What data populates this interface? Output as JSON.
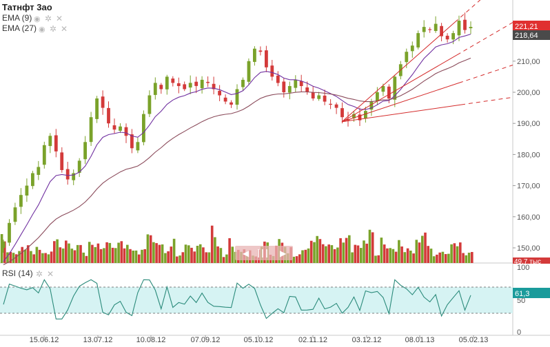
{
  "instrument": {
    "name": "Татнфт 3ао",
    "indicators": [
      {
        "label": "EMA (9)",
        "color": "#7030a0"
      },
      {
        "label": "EMA (27)",
        "color": "#8a4a5a"
      }
    ],
    "price_badges": [
      {
        "value": "221,21",
        "color": "#e03030"
      },
      {
        "value": "218,64",
        "color": "#4a4a4a"
      }
    ],
    "volume_badge": "49,7 тыс"
  },
  "rsi": {
    "label": "RSI (14)",
    "badge": "61,3",
    "badge_color": "#1a9b9b",
    "levels": [
      30,
      70
    ],
    "ticks": [
      "100",
      "50",
      "0"
    ]
  },
  "colors": {
    "up": "#7aa22a",
    "down": "#d33a3a",
    "ema_fast": "#7030a0",
    "ema_slow": "#8a4a5a",
    "fan": "#d42a2a",
    "rsi_line": "#2a8a7a",
    "rsi_band": "#d6f3f3"
  },
  "chart_data": [
    {
      "type": "candlestick",
      "title": "Татнфт 3ао",
      "x_tick_labels": [
        "15.06.12",
        "13.07.12",
        "10.08.12",
        "07.09.12",
        "05.10.12",
        "02.11.12",
        "03.12.12",
        "08.01.13",
        "05.02.13"
      ],
      "y_tick_labels": [
        "150,00",
        "160,00",
        "170,00",
        "180,00",
        "190,00",
        "200,00",
        "210,00"
      ],
      "ylim": [
        145,
        228
      ],
      "grid": false,
      "close_series": [
        152,
        158,
        163,
        167,
        170,
        174,
        176,
        183,
        186,
        181,
        175,
        172,
        174,
        178,
        184,
        192,
        198,
        195,
        190,
        188,
        189,
        186,
        182,
        184,
        193,
        199,
        203,
        201,
        205,
        203,
        202,
        201,
        203,
        202,
        204,
        203,
        201,
        199,
        197,
        196,
        201,
        204,
        210,
        214,
        213,
        208,
        205,
        203,
        200,
        202,
        204,
        202,
        200,
        198,
        199,
        197,
        196,
        195,
        192,
        191,
        193,
        191,
        194,
        197,
        200,
        202,
        198,
        205,
        209,
        213,
        215,
        219,
        221,
        220,
        222,
        218,
        217,
        219,
        223,
        220,
        221
      ],
      "fan_origin": {
        "label": "02.11.12 low",
        "value": 190.5
      },
      "fan_targets": [
        222.5,
        212,
        203,
        196
      ]
    },
    {
      "type": "line",
      "title": "RSI (14)",
      "ylim": [
        0,
        100
      ],
      "y_tick_labels": [
        "100",
        "50",
        "0"
      ],
      "levels": [
        30,
        70
      ],
      "last_value": 61.3
    }
  ]
}
